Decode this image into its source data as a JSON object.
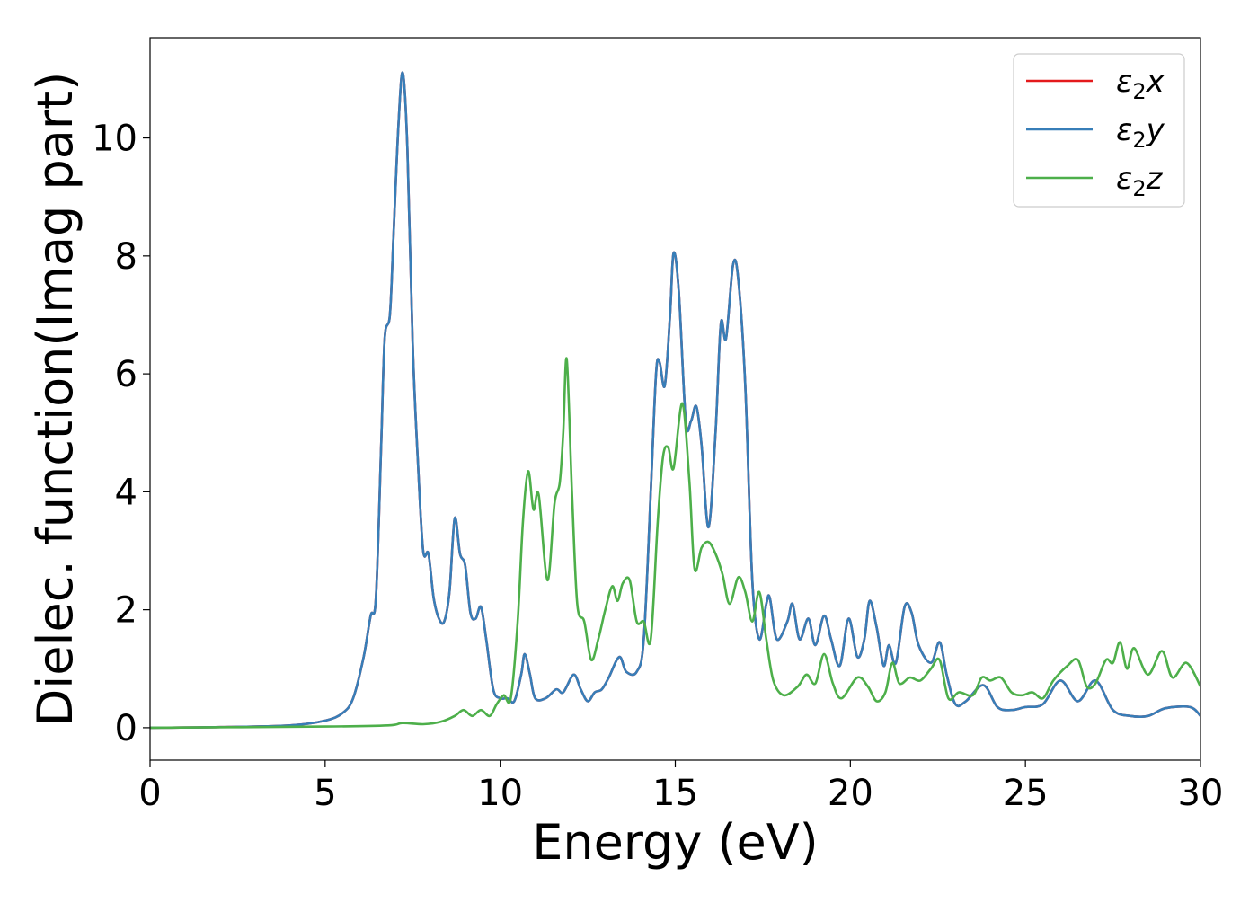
{
  "chart_data": {
    "type": "line",
    "xlabel": "Energy (eV)",
    "ylabel": "Dielec. function(Imag part)",
    "xlim": [
      0,
      30
    ],
    "ylim": [
      -0.55,
      11.7
    ],
    "xticks": [
      0,
      5,
      10,
      15,
      20,
      25,
      30
    ],
    "yticks": [
      0,
      2,
      4,
      6,
      8,
      10
    ],
    "grid": false,
    "legend_position": "top-right",
    "series": [
      {
        "name": "ε₂x",
        "name_base": "ε",
        "name_sub": "2",
        "name_axis": "x",
        "color": "#e41a1c",
        "same_as": "ε₂y"
      },
      {
        "name": "ε₂y",
        "name_base": "ε",
        "name_sub": "2",
        "name_axis": "y",
        "color": "#377eb8",
        "points": [
          [
            0,
            0
          ],
          [
            2,
            0.01
          ],
          [
            4,
            0.04
          ],
          [
            5,
            0.12
          ],
          [
            5.5,
            0.25
          ],
          [
            5.8,
            0.5
          ],
          [
            6.1,
            1.2
          ],
          [
            6.3,
            1.9
          ],
          [
            6.45,
            2.2
          ],
          [
            6.6,
            4.8
          ],
          [
            6.7,
            6.6
          ],
          [
            6.85,
            7.0
          ],
          [
            6.95,
            8.3
          ],
          [
            7.1,
            10.3
          ],
          [
            7.22,
            11.1
          ],
          [
            7.35,
            9.8
          ],
          [
            7.5,
            6.5
          ],
          [
            7.65,
            4.5
          ],
          [
            7.8,
            3.0
          ],
          [
            7.95,
            2.95
          ],
          [
            8.1,
            2.2
          ],
          [
            8.25,
            1.85
          ],
          [
            8.4,
            1.8
          ],
          [
            8.55,
            2.3
          ],
          [
            8.7,
            3.55
          ],
          [
            8.85,
            2.95
          ],
          [
            9.0,
            2.75
          ],
          [
            9.15,
            1.95
          ],
          [
            9.3,
            1.85
          ],
          [
            9.45,
            2.05
          ],
          [
            9.6,
            1.5
          ],
          [
            9.8,
            0.65
          ],
          [
            10.0,
            0.5
          ],
          [
            10.2,
            0.5
          ],
          [
            10.4,
            0.45
          ],
          [
            10.6,
            0.9
          ],
          [
            10.7,
            1.25
          ],
          [
            10.85,
            0.9
          ],
          [
            11.0,
            0.5
          ],
          [
            11.3,
            0.5
          ],
          [
            11.6,
            0.65
          ],
          [
            11.8,
            0.6
          ],
          [
            12.1,
            0.9
          ],
          [
            12.3,
            0.65
          ],
          [
            12.5,
            0.45
          ],
          [
            12.7,
            0.6
          ],
          [
            12.9,
            0.65
          ],
          [
            13.1,
            0.85
          ],
          [
            13.4,
            1.2
          ],
          [
            13.6,
            0.95
          ],
          [
            13.9,
            0.95
          ],
          [
            14.1,
            1.5
          ],
          [
            14.3,
            4.0
          ],
          [
            14.45,
            6.0
          ],
          [
            14.55,
            6.2
          ],
          [
            14.7,
            5.8
          ],
          [
            14.85,
            7.0
          ],
          [
            14.95,
            8.05
          ],
          [
            15.1,
            7.4
          ],
          [
            15.3,
            5.2
          ],
          [
            15.45,
            5.2
          ],
          [
            15.6,
            5.45
          ],
          [
            15.75,
            4.8
          ],
          [
            15.95,
            3.4
          ],
          [
            16.15,
            5.0
          ],
          [
            16.3,
            6.85
          ],
          [
            16.45,
            6.6
          ],
          [
            16.65,
            7.85
          ],
          [
            16.8,
            7.6
          ],
          [
            17.0,
            5.8
          ],
          [
            17.2,
            2.5
          ],
          [
            17.4,
            1.5
          ],
          [
            17.6,
            2.1
          ],
          [
            17.7,
            2.2
          ],
          [
            17.9,
            1.5
          ],
          [
            18.2,
            1.8
          ],
          [
            18.35,
            2.1
          ],
          [
            18.55,
            1.5
          ],
          [
            18.8,
            1.85
          ],
          [
            19.0,
            1.4
          ],
          [
            19.25,
            1.9
          ],
          [
            19.45,
            1.5
          ],
          [
            19.7,
            1.05
          ],
          [
            19.95,
            1.85
          ],
          [
            20.2,
            1.2
          ],
          [
            20.4,
            1.5
          ],
          [
            20.55,
            2.15
          ],
          [
            20.75,
            1.7
          ],
          [
            20.95,
            1.05
          ],
          [
            21.1,
            1.4
          ],
          [
            21.3,
            1.1
          ],
          [
            21.55,
            2.05
          ],
          [
            21.75,
            1.95
          ],
          [
            21.95,
            1.4
          ],
          [
            22.3,
            1.1
          ],
          [
            22.55,
            1.45
          ],
          [
            22.75,
            0.9
          ],
          [
            23.0,
            0.4
          ],
          [
            23.3,
            0.45
          ],
          [
            23.8,
            0.72
          ],
          [
            24.2,
            0.35
          ],
          [
            24.6,
            0.3
          ],
          [
            25.0,
            0.35
          ],
          [
            25.5,
            0.4
          ],
          [
            26.0,
            0.8
          ],
          [
            26.5,
            0.45
          ],
          [
            27.0,
            0.8
          ],
          [
            27.5,
            0.3
          ],
          [
            28.0,
            0.2
          ],
          [
            28.5,
            0.2
          ],
          [
            29.0,
            0.33
          ],
          [
            29.7,
            0.35
          ],
          [
            30,
            0.2
          ]
        ]
      },
      {
        "name": "ε₂z",
        "name_base": "ε",
        "name_sub": "2",
        "name_axis": "z",
        "color": "#4daf4a",
        "points": [
          [
            0,
            0
          ],
          [
            5,
            0.02
          ],
          [
            6.8,
            0.04
          ],
          [
            7.2,
            0.08
          ],
          [
            7.8,
            0.06
          ],
          [
            8.3,
            0.1
          ],
          [
            8.7,
            0.2
          ],
          [
            8.95,
            0.3
          ],
          [
            9.2,
            0.2
          ],
          [
            9.45,
            0.3
          ],
          [
            9.7,
            0.2
          ],
          [
            9.9,
            0.4
          ],
          [
            10.1,
            0.55
          ],
          [
            10.3,
            0.5
          ],
          [
            10.5,
            1.8
          ],
          [
            10.65,
            3.5
          ],
          [
            10.8,
            4.35
          ],
          [
            10.95,
            3.7
          ],
          [
            11.1,
            3.95
          ],
          [
            11.35,
            2.5
          ],
          [
            11.55,
            3.8
          ],
          [
            11.7,
            4.15
          ],
          [
            11.8,
            5.0
          ],
          [
            11.9,
            6.25
          ],
          [
            12.05,
            4.0
          ],
          [
            12.2,
            2.1
          ],
          [
            12.4,
            1.8
          ],
          [
            12.6,
            1.15
          ],
          [
            12.8,
            1.5
          ],
          [
            13.0,
            2.0
          ],
          [
            13.2,
            2.4
          ],
          [
            13.35,
            2.15
          ],
          [
            13.5,
            2.45
          ],
          [
            13.7,
            2.5
          ],
          [
            13.9,
            1.8
          ],
          [
            14.1,
            1.8
          ],
          [
            14.3,
            1.5
          ],
          [
            14.5,
            3.5
          ],
          [
            14.65,
            4.6
          ],
          [
            14.8,
            4.75
          ],
          [
            14.95,
            4.4
          ],
          [
            15.2,
            5.5
          ],
          [
            15.4,
            4.2
          ],
          [
            15.55,
            2.7
          ],
          [
            15.75,
            3.05
          ],
          [
            15.95,
            3.15
          ],
          [
            16.15,
            2.95
          ],
          [
            16.35,
            2.6
          ],
          [
            16.55,
            2.1
          ],
          [
            16.8,
            2.55
          ],
          [
            17.0,
            2.3
          ],
          [
            17.2,
            1.8
          ],
          [
            17.4,
            2.3
          ],
          [
            17.6,
            1.5
          ],
          [
            17.8,
            0.8
          ],
          [
            18.1,
            0.55
          ],
          [
            18.5,
            0.7
          ],
          [
            18.75,
            0.9
          ],
          [
            19.0,
            0.75
          ],
          [
            19.25,
            1.25
          ],
          [
            19.5,
            0.75
          ],
          [
            19.75,
            0.5
          ],
          [
            20.2,
            0.85
          ],
          [
            20.5,
            0.7
          ],
          [
            20.75,
            0.45
          ],
          [
            21.0,
            0.6
          ],
          [
            21.2,
            1.1
          ],
          [
            21.4,
            0.75
          ],
          [
            21.7,
            0.85
          ],
          [
            22.0,
            0.8
          ],
          [
            22.3,
            1.0
          ],
          [
            22.55,
            1.15
          ],
          [
            22.8,
            0.5
          ],
          [
            23.1,
            0.6
          ],
          [
            23.5,
            0.55
          ],
          [
            23.75,
            0.85
          ],
          [
            24.0,
            0.8
          ],
          [
            24.3,
            0.85
          ],
          [
            24.6,
            0.6
          ],
          [
            24.9,
            0.55
          ],
          [
            25.2,
            0.6
          ],
          [
            25.5,
            0.5
          ],
          [
            25.8,
            0.8
          ],
          [
            26.2,
            1.05
          ],
          [
            26.5,
            1.15
          ],
          [
            26.75,
            0.7
          ],
          [
            27.0,
            0.75
          ],
          [
            27.3,
            1.15
          ],
          [
            27.5,
            1.1
          ],
          [
            27.7,
            1.45
          ],
          [
            27.9,
            1.0
          ],
          [
            28.1,
            1.35
          ],
          [
            28.5,
            0.9
          ],
          [
            28.9,
            1.3
          ],
          [
            29.2,
            0.85
          ],
          [
            29.6,
            1.1
          ],
          [
            30,
            0.7
          ]
        ]
      }
    ]
  }
}
